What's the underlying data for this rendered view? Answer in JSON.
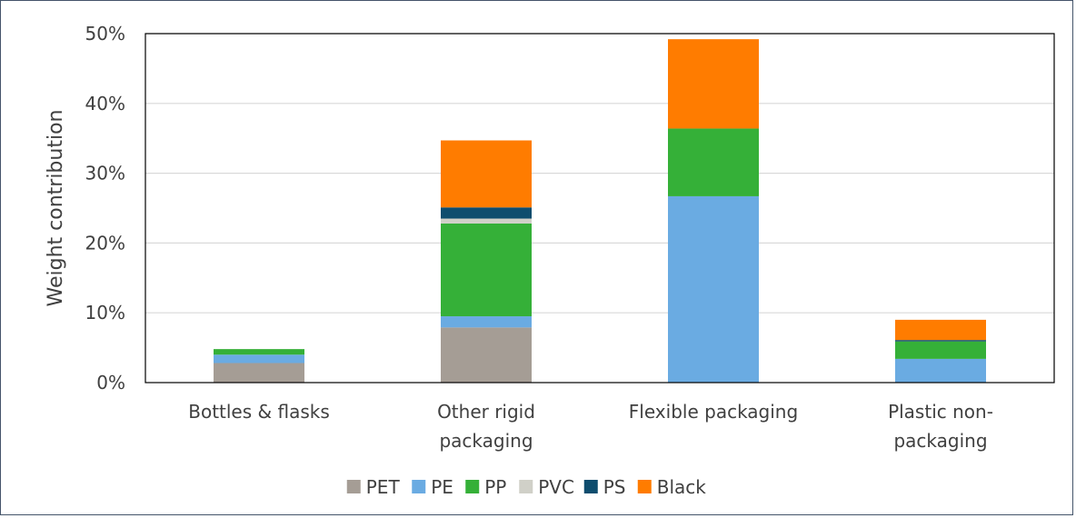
{
  "chart_data": {
    "type": "bar",
    "stacked": true,
    "categories": [
      [
        "Bottles & flasks"
      ],
      [
        "Other rigid",
        "packaging"
      ],
      [
        "Flexible packaging"
      ],
      [
        "Plastic non-",
        "packaging"
      ]
    ],
    "series": [
      {
        "name": "PET",
        "color": "#a59d95",
        "values": [
          2.8,
          7.9,
          0.0,
          0.0
        ]
      },
      {
        "name": "PE",
        "color": "#6aabe2",
        "values": [
          1.2,
          1.6,
          26.7,
          3.4
        ]
      },
      {
        "name": "PP",
        "color": "#35b038",
        "values": [
          0.8,
          13.3,
          9.7,
          2.5
        ]
      },
      {
        "name": "PVC",
        "color": "#d0d0c8",
        "values": [
          0.0,
          0.7,
          0.0,
          0.0
        ]
      },
      {
        "name": "PS",
        "color": "#0e4d6e",
        "values": [
          0.0,
          1.6,
          0.0,
          0.2
        ]
      },
      {
        "name": "Black",
        "color": "#ff7c00",
        "values": [
          0.0,
          9.6,
          12.8,
          2.9
        ]
      }
    ],
    "ylabel": "Weight contribution",
    "ylim": [
      0,
      50
    ],
    "yticks": [
      "0%",
      "10%",
      "20%",
      "30%",
      "40%",
      "50%"
    ],
    "grid": true,
    "legend_position": "bottom"
  }
}
